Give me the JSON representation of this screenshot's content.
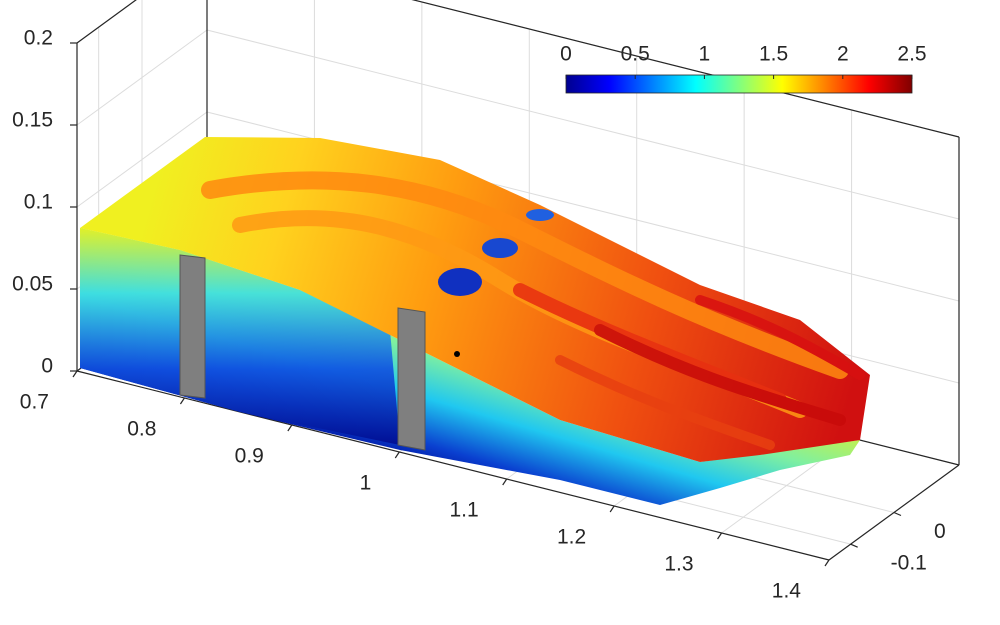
{
  "chart_data": {
    "type": "scatter3",
    "xlim": [
      0.7,
      1.4
    ],
    "xticks": [
      0.7,
      0.8,
      0.9,
      1,
      1.1,
      1.2,
      1.3,
      1.4
    ],
    "ylim": [
      -0.15,
      0.15
    ],
    "yticks": [
      -0.1,
      0
    ],
    "zlim": [
      0,
      0.2
    ],
    "zticks": [
      0,
      0.05,
      0.1,
      0.15,
      0.2
    ],
    "grid": true,
    "colorbar": {
      "clim": [
        0,
        2.5
      ],
      "ticks": [
        0,
        0.5,
        1,
        1.5,
        2,
        2.5
      ],
      "colormap": "jet",
      "location": "northeast"
    }
  }
}
